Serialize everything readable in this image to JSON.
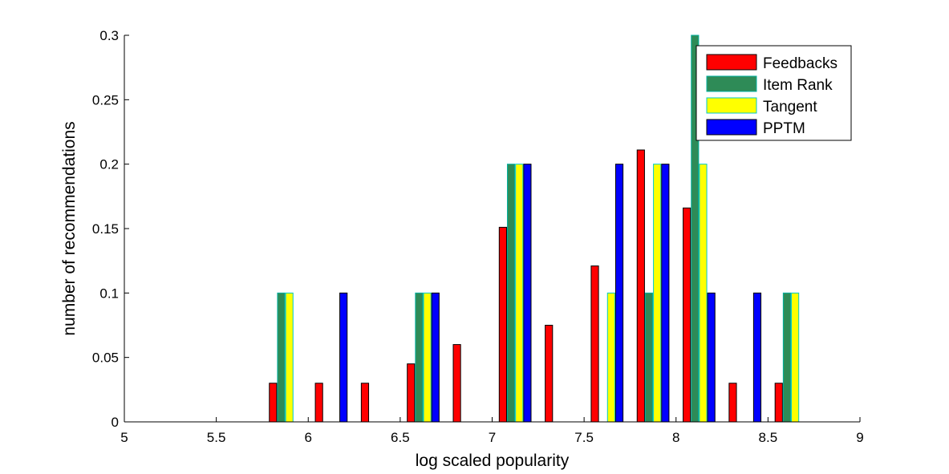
{
  "chart_data": {
    "type": "bar",
    "xlabel": "log scaled popularity",
    "ylabel": "number of recommendations",
    "xlim": [
      5,
      9
    ],
    "ylim": [
      0,
      0.3
    ],
    "xticks": [
      "5",
      "5.5",
      "6",
      "6.5",
      "7",
      "7.5",
      "8",
      "8.5",
      "9"
    ],
    "yticks": [
      "0",
      "0.05",
      "0.1",
      "0.15",
      "0.2",
      "0.25",
      "0.3"
    ],
    "grid": false,
    "legend_position": "top-right",
    "bins": [
      5.125,
      5.375,
      5.625,
      5.875,
      6.125,
      6.375,
      6.625,
      6.875,
      7.125,
      7.375,
      7.625,
      7.875,
      8.125,
      8.375,
      8.625,
      8.875
    ],
    "series": [
      {
        "name": "Feedbacks",
        "color": "#ff0000",
        "values": [
          0,
          0,
          0,
          0.03,
          0.03,
          0.03,
          0.045,
          0.06,
          0.151,
          0.075,
          0.121,
          0.211,
          0.166,
          0.03,
          0.03,
          0
        ]
      },
      {
        "name": "Item Rank",
        "color": "#2e8b57",
        "values": [
          0,
          0,
          0,
          0.1,
          0,
          0,
          0.1,
          0,
          0.2,
          0,
          0,
          0.1,
          0.3,
          0,
          0.1,
          0
        ]
      },
      {
        "name": "Tangent",
        "color": "#ffff00",
        "values": [
          0,
          0,
          0,
          0.1,
          0,
          0,
          0.1,
          0,
          0.2,
          0,
          0.1,
          0.2,
          0.2,
          0,
          0.1,
          0
        ]
      },
      {
        "name": "PPTM",
        "color": "#0000ff",
        "values": [
          0,
          0,
          0,
          0,
          0.1,
          0,
          0.1,
          0,
          0.2,
          0,
          0.2,
          0.2,
          0.1,
          0.1,
          0,
          0
        ]
      }
    ]
  }
}
